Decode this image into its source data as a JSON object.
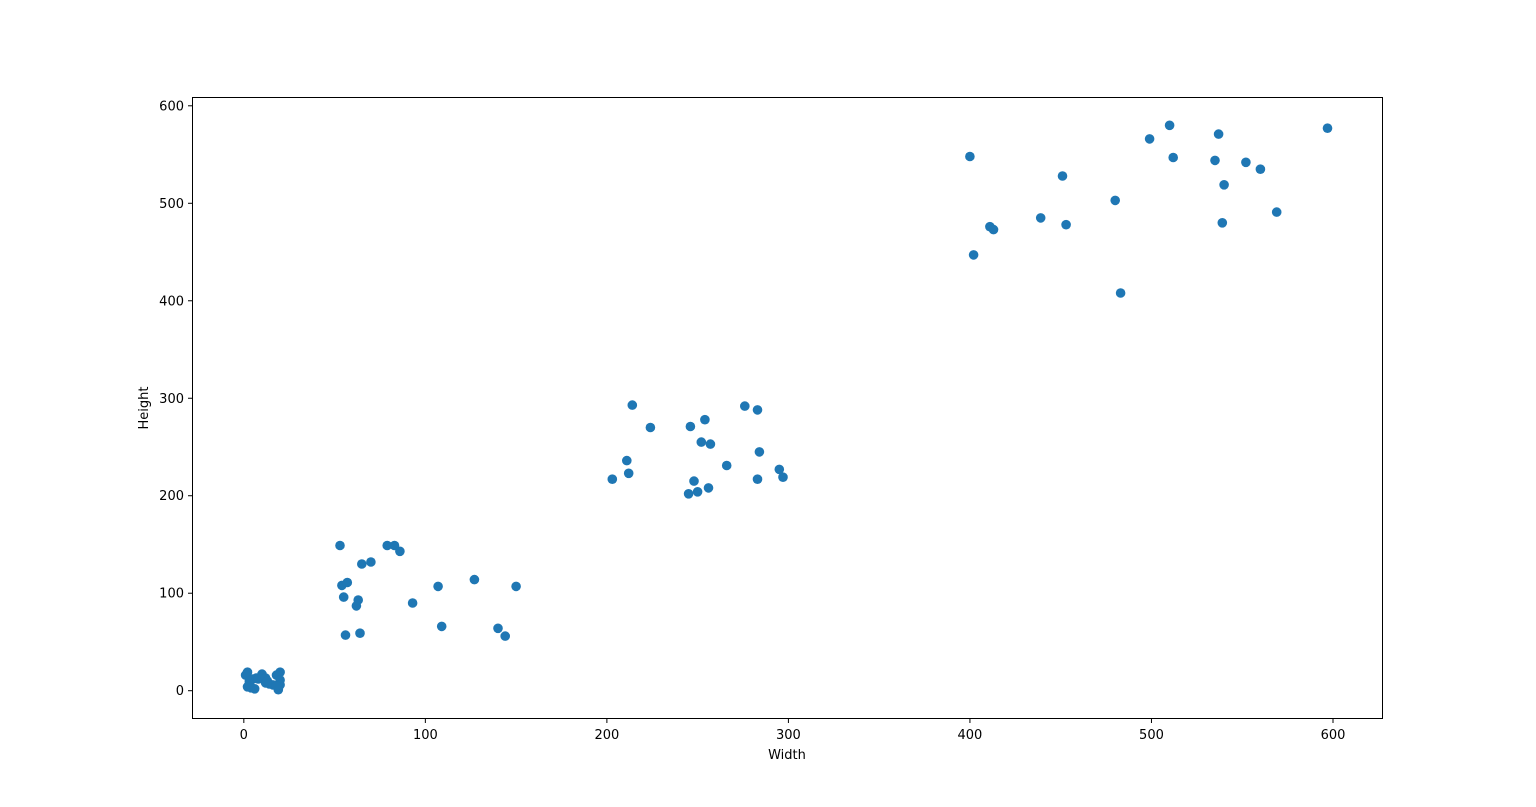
{
  "chart_data": {
    "type": "scatter",
    "title": "",
    "xlabel": "Width",
    "ylabel": "Height",
    "xlim": [
      -28,
      627
    ],
    "ylim": [
      -28,
      608
    ],
    "xticks": [
      0,
      100,
      200,
      300,
      400,
      500,
      600
    ],
    "yticks": [
      0,
      100,
      200,
      300,
      400,
      500,
      600
    ],
    "grid": false,
    "marker_color": "#1f77b4",
    "series": [
      {
        "points": [
          [
            1,
            16
          ],
          [
            2,
            19
          ],
          [
            3,
            10
          ],
          [
            2,
            4
          ],
          [
            4,
            3
          ],
          [
            5,
            12
          ],
          [
            6,
            2
          ],
          [
            7,
            13
          ],
          [
            8,
            12
          ],
          [
            10,
            17
          ],
          [
            12,
            13
          ],
          [
            12,
            8
          ],
          [
            14,
            7
          ],
          [
            16,
            6
          ],
          [
            18,
            16
          ],
          [
            19,
            1
          ],
          [
            20,
            19
          ],
          [
            20,
            11
          ],
          [
            20,
            6
          ],
          [
            3,
            7
          ],
          [
            18,
            5
          ],
          [
            13,
            10
          ],
          [
            53,
            149
          ],
          [
            54,
            108
          ],
          [
            55,
            96
          ],
          [
            56,
            57
          ],
          [
            57,
            111
          ],
          [
            62,
            87
          ],
          [
            63,
            93
          ],
          [
            64,
            59
          ],
          [
            65,
            130
          ],
          [
            70,
            132
          ],
          [
            79,
            149
          ],
          [
            83,
            149
          ],
          [
            86,
            143
          ],
          [
            93,
            90
          ],
          [
            107,
            107
          ],
          [
            109,
            66
          ],
          [
            127,
            114
          ],
          [
            140,
            64
          ],
          [
            144,
            56
          ],
          [
            150,
            107
          ],
          [
            203,
            217
          ],
          [
            211,
            236
          ],
          [
            212,
            223
          ],
          [
            214,
            293
          ],
          [
            224,
            270
          ],
          [
            245,
            202
          ],
          [
            246,
            271
          ],
          [
            248,
            215
          ],
          [
            250,
            204
          ],
          [
            252,
            255
          ],
          [
            254,
            278
          ],
          [
            256,
            208
          ],
          [
            257,
            253
          ],
          [
            266,
            231
          ],
          [
            276,
            292
          ],
          [
            283,
            288
          ],
          [
            283,
            217
          ],
          [
            284,
            245
          ],
          [
            295,
            227
          ],
          [
            297,
            219
          ],
          [
            400,
            548
          ],
          [
            402,
            447
          ],
          [
            411,
            476
          ],
          [
            413,
            473
          ],
          [
            439,
            485
          ],
          [
            451,
            528
          ],
          [
            453,
            478
          ],
          [
            480,
            503
          ],
          [
            483,
            408
          ],
          [
            499,
            566
          ],
          [
            510,
            580
          ],
          [
            512,
            547
          ],
          [
            535,
            544
          ],
          [
            537,
            571
          ],
          [
            539,
            480
          ],
          [
            540,
            519
          ],
          [
            552,
            542
          ],
          [
            560,
            535
          ],
          [
            569,
            491
          ],
          [
            597,
            577
          ]
        ]
      }
    ]
  }
}
